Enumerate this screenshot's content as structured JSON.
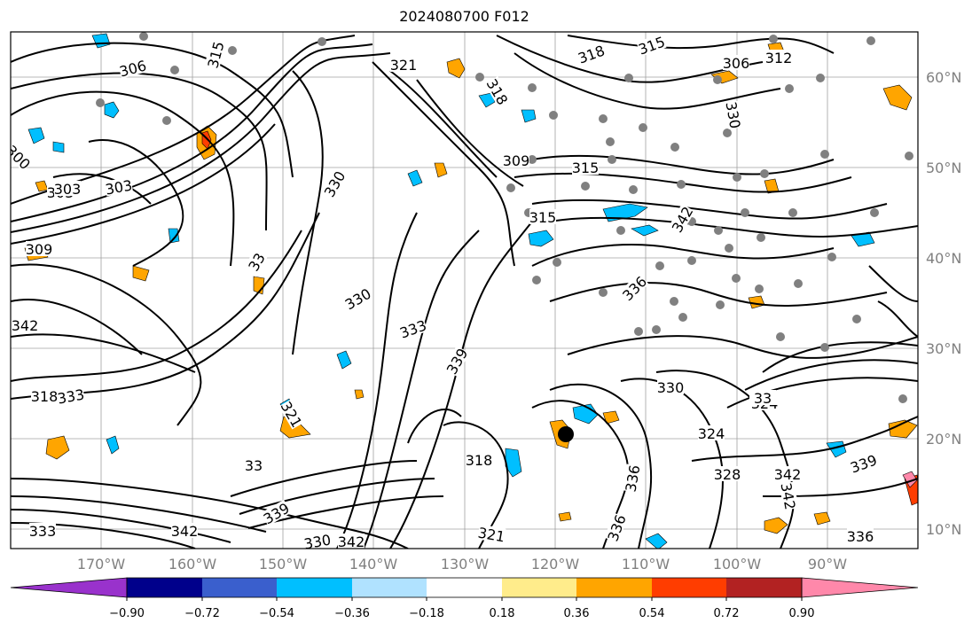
{
  "title": "2024080700 F012",
  "map": {
    "lon_labels": [
      "170°W",
      "160°W",
      "150°W",
      "140°W",
      "130°W",
      "120°W",
      "110°W",
      "100°W",
      "90°W"
    ],
    "lat_labels": [
      "60°N",
      "50°N",
      "40°N",
      "30°N",
      "20°N",
      "10°N"
    ],
    "contour_labels": [
      "306",
      "315",
      "321",
      "318",
      "315",
      "306",
      "312",
      "303",
      "309",
      "315",
      "300",
      "303",
      "303",
      "330",
      "318",
      "330",
      "309",
      "33",
      "330",
      "336",
      "318",
      "333",
      "315",
      "342",
      "324",
      "318",
      "333",
      "321",
      "33",
      "330",
      "321",
      "328",
      "324",
      "342",
      "339",
      "336",
      "342",
      "336",
      "330",
      "333",
      "339",
      "342",
      "342",
      "339",
      "336",
      "342",
      "33"
    ],
    "grid_color": "#a0a0a0",
    "contour_color": "#000000",
    "label_color": "#808080"
  },
  "colorbar": {
    "tick_labels": [
      "−0.90",
      "−0.72",
      "−0.54",
      "−0.36",
      "−0.18",
      "0.18",
      "0.36",
      "0.54",
      "0.72",
      "0.90"
    ],
    "colors": [
      "#9932cc",
      "#00008b",
      "#3a5fcd",
      "#00bfff",
      "#b0e2ff",
      "#ffffff",
      "#ffec8b",
      "#ffa500",
      "#ff3d00",
      "#b22222",
      "#ff88aa"
    ]
  }
}
